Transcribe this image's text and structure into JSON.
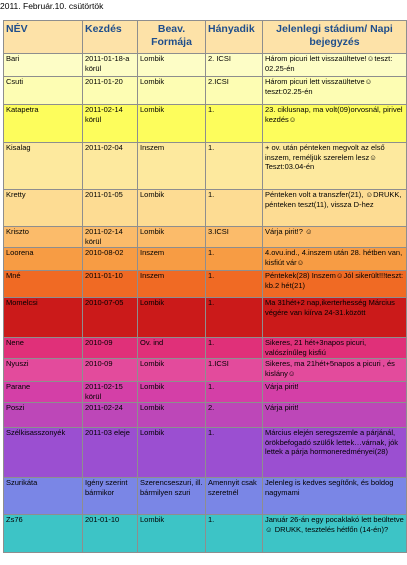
{
  "date_line": "2011. Február.10. csütörtök",
  "headers": [
    "NÉV",
    "Kezdés",
    "Beav. Formája",
    "Hányadik",
    "Jelenlegi stádium/ Napi bejegyzés"
  ],
  "rows": [
    {
      "name": "Bari",
      "start": "2011-01-18-a körül",
      "form": "Lombik",
      "nth": "2. ICSI",
      "status": "Három picuri lett visszaültetve!☺teszt: 02.25-én",
      "bg": "#fdfdc6"
    },
    {
      "name": "Csuti",
      "start": "2011-01-20",
      "form": "Lombik",
      "nth": "2.ICSI",
      "status": "Három picuri lett visszaültetve☺teszt:02.25-én",
      "bg": "#fdfdb3"
    },
    {
      "name": "Katapetra",
      "start": "2011-02-14 körül",
      "form": "Lombik",
      "nth": "1.",
      "status": "23. ciklusnap, ma volt(09)orvosnál, pirivel kezdés☺",
      "bg": "#fdfd5c"
    },
    {
      "name": "Kisalag",
      "start": "2011-02-04",
      "form": "Inszem",
      "nth": "1.",
      "status": "+ ov. után pénteken megvolt az első inszem, reméljük szerelem lesz☺Teszt:03.04-én",
      "bg": "#fde99e"
    },
    {
      "name": "Kretty",
      "start": "2011-01-05",
      "form": "Lombik",
      "nth": "1.",
      "status": "Pénteken volt a transzfer(21), ☺DRUKK, pénteken teszt(11), vissza D-hez",
      "bg": "#fddc93"
    },
    {
      "name": "Kriszto",
      "start": "2011-02-14 körül",
      "form": "Lombik",
      "nth": "3.ICSI",
      "status": "Várja pirit!? ☺",
      "bg": "#fbbb6a"
    },
    {
      "name": "Loorena",
      "start": "2010-08-02",
      "form": "Inszem",
      "nth": "1.",
      "status": "4.ovu.ind., 4.inszem után 28. hétben van, kisfiút vár☺",
      "bg": "#f79c44"
    },
    {
      "name": "Mné",
      "start": "2011-01-10",
      "form": "Inszem",
      "nth": "1.",
      "status": "Péntekek(28) Inszem☺Jól sikerült!!!teszt: kb.2 hét(21)",
      "bg": "#f06a24"
    },
    {
      "name": "Momelcsi",
      "start": "2010-07-05",
      "form": "Lombik",
      "nth": "1.",
      "status": "Ma 31hét+2 nap,ikerterhesség Március végére van kiírva 24-31.között",
      "bg": "#cb1a1a"
    },
    {
      "name": "Nene",
      "start": "2010-09",
      "form": "Ov. ind",
      "nth": "1.",
      "status": "Sikeres, 21 hét+3napos picuri, valószínűleg kisfiú",
      "bg": "#e03079"
    },
    {
      "name": "Nyuszi",
      "start": "2010-09",
      "form": "Lombik",
      "nth": "1.ICSI",
      "status": "Sikeres, ma 21hét+5napos a picuri , és kislány☺",
      "bg": "#e34b9c"
    },
    {
      "name": "Parane",
      "start": "2011-02-15 körül",
      "form": "Lombik",
      "nth": "1.",
      "status": "Várja pirit!",
      "bg": "#d43fa7"
    },
    {
      "name": "Poszi",
      "start": "2011-02-24",
      "form": "Lombik",
      "nth": "2.",
      "status": "Várja pirit!",
      "bg": "#bd47b8"
    },
    {
      "name": "Szélkisasszonyék",
      "start": "2011-03 eleje",
      "form": "Lombik",
      "nth": "1.",
      "status": "Március elején seregszemle a párjánál, örökbefogadó szülők lettek…várnak, jók lettek a párja hormoneredményei(28)",
      "bg": "#9b4fd1"
    },
    {
      "name": "Szurikáta",
      "start": "Igény szerint bármikor",
      "form": "Szerencseszuri, ill. bármilyen szuri",
      "nth": "Amennyit csak szeretnél",
      "status": "Jelenleg is kedves segítőnk, és boldog nagymami",
      "bg": "#7a86e6"
    },
    {
      "name": "Zs76",
      "start": "201-01-10",
      "form": "Lombik",
      "nth": "1.",
      "status": "Január 26-án egy pocaklakó lett beültetve☺ DRUKK, tesztelés hétfőn (14-én)?",
      "bg": "#3dc4c6"
    }
  ]
}
